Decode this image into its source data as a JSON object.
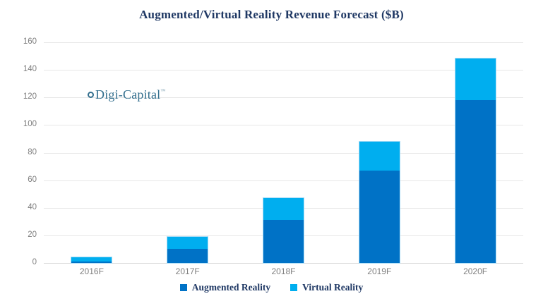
{
  "logo": {
    "text": "Digi-Capital",
    "trademark": "™",
    "mark_icon": "ring-icon",
    "color": "#336f8e"
  },
  "chart_data": {
    "type": "bar",
    "stacked": true,
    "title": "Augmented/Virtual Reality Revenue Forecast ($B)",
    "categories": [
      "2016F",
      "2017F",
      "2018F",
      "2019F",
      "2020F"
    ],
    "series": [
      {
        "name": "Augmented Reality",
        "color": "#0072C6",
        "values": [
          1,
          10,
          31,
          67,
          118
        ]
      },
      {
        "name": "Virtual Reality",
        "color": "#00AEEF",
        "values": [
          3,
          9,
          16,
          21,
          30
        ]
      }
    ],
    "xlabel": "",
    "ylabel": "",
    "ylim": [
      0,
      160
    ],
    "yticks": [
      0,
      20,
      40,
      60,
      80,
      100,
      120,
      140,
      160
    ],
    "grid": true,
    "legend_position": "bottom"
  },
  "colors": {
    "title": "#1f3864",
    "axis_labels": "#7f7f7f",
    "gridline": "#e7e7e7",
    "bar_outline": "#a9dcf6",
    "background": "#ffffff"
  }
}
